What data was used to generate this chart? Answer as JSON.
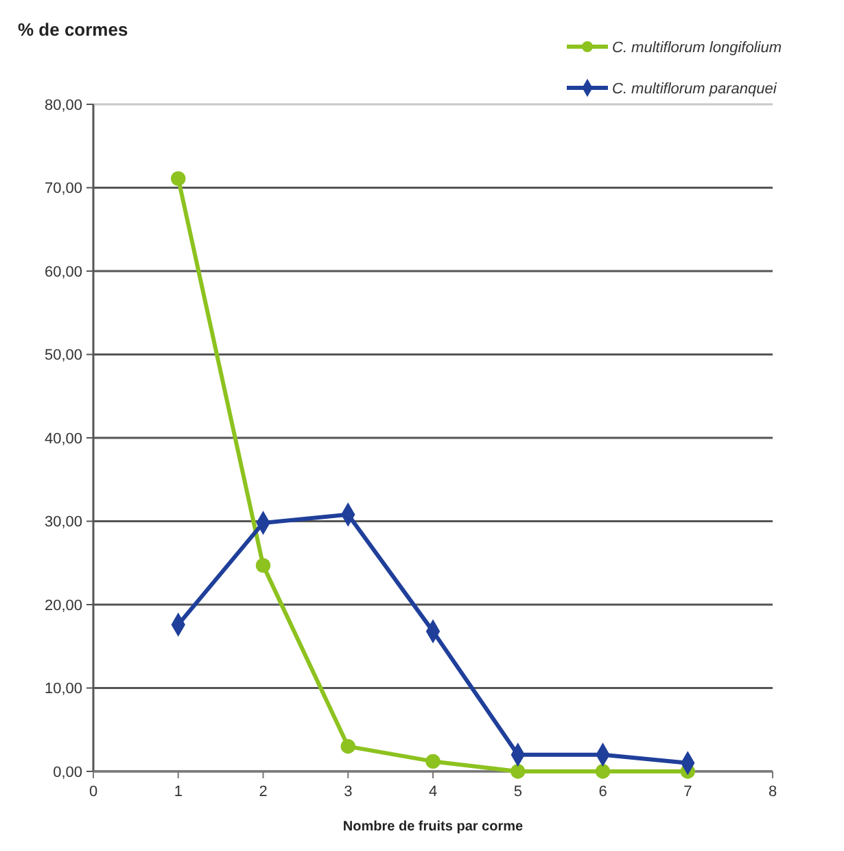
{
  "chart_data": {
    "type": "line",
    "ylabel": "% de cormes",
    "xlabel": "Nombre de fruits par corme",
    "x": [
      1,
      2,
      3,
      4,
      5,
      6,
      7
    ],
    "series": [
      {
        "name": "C. multiflorum longifolium",
        "color": "#8dc21f",
        "marker": "circle",
        "values": [
          71.1,
          24.7,
          3.0,
          1.2,
          0,
          0,
          0
        ]
      },
      {
        "name": "C. multiflorum paranquei",
        "color": "#1f3f9a",
        "marker": "diamond",
        "values": [
          17.6,
          29.8,
          30.8,
          16.8,
          2.0,
          2.0,
          1.0
        ]
      }
    ],
    "xlim": [
      0,
      8
    ],
    "xticks": [
      0,
      1,
      2,
      3,
      4,
      5,
      6,
      7,
      8
    ],
    "ylim": [
      0,
      80
    ],
    "yticks": [
      {
        "value": 0,
        "label": "0,00"
      },
      {
        "value": 10,
        "label": "10,00"
      },
      {
        "value": 20,
        "label": "20,00"
      },
      {
        "value": 30,
        "label": "30,00"
      },
      {
        "value": 40,
        "label": "40,00"
      },
      {
        "value": 50,
        "label": "50,00"
      },
      {
        "value": 60,
        "label": "60,00"
      },
      {
        "value": 70,
        "label": "70,00"
      },
      {
        "value": 80,
        "label": "80,00"
      }
    ],
    "grid": "y",
    "legend": "top right"
  }
}
